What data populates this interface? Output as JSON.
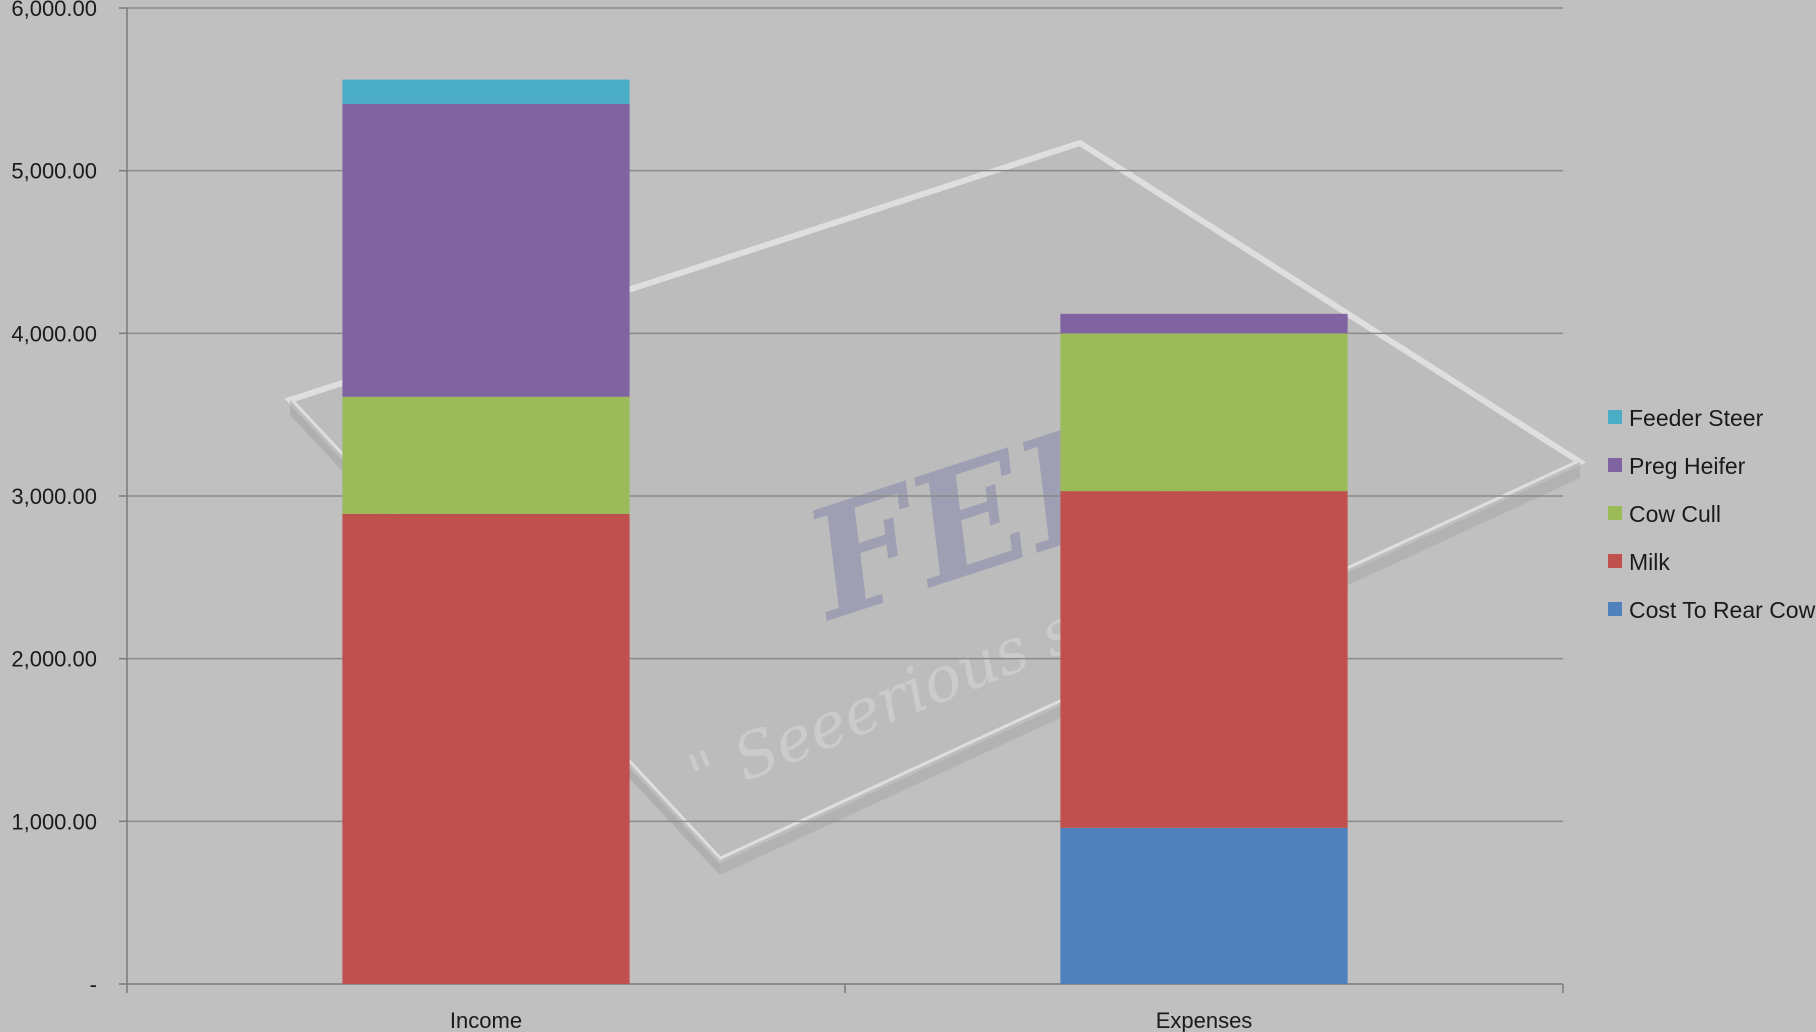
{
  "colors": {
    "background": "#c0c0c0",
    "gridline": "#8a8a8a",
    "axis": "#7a7a7a"
  },
  "watermark": {
    "logo_text": "FEED",
    "slogan": "\" Seeerious scoff"
  },
  "chart_data": {
    "type": "bar",
    "stacked": true,
    "categories": [
      "Income",
      "Expenses"
    ],
    "ylim": [
      0,
      6000
    ],
    "yticks": [
      0,
      1000,
      2000,
      3000,
      4000,
      5000,
      6000
    ],
    "ytick_labels": [
      "-",
      "1,000.00",
      "2,000.00",
      "3,000.00",
      "4,000.00",
      "5,000.00",
      "6,000.00"
    ],
    "grid": true,
    "legend_position": "right",
    "series": [
      {
        "name": "Cost To Rear Cow",
        "color": "#4f81bd",
        "values": [
          0,
          960
        ]
      },
      {
        "name": "Milk",
        "color": "#c0504d",
        "values": [
          2890,
          2070
        ]
      },
      {
        "name": "Cow Cull",
        "color": "#9bbb59",
        "values": [
          720,
          970
        ]
      },
      {
        "name": "Preg Heifer",
        "color": "#8064a2",
        "values": [
          1800,
          120
        ]
      },
      {
        "name": "Feeder Steer",
        "color": "#4bacc6",
        "values": [
          150,
          0
        ]
      }
    ]
  }
}
